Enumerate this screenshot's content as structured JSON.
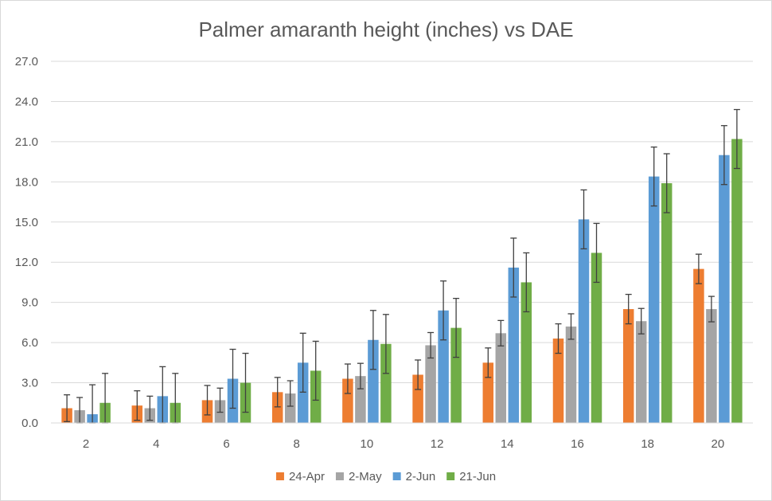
{
  "chart_data": {
    "type": "bar",
    "title": "Palmer amaranth height (inches) vs DAE",
    "xlabel": "",
    "ylabel": "",
    "categories": [
      "2",
      "4",
      "6",
      "8",
      "10",
      "12",
      "14",
      "16",
      "18",
      "20"
    ],
    "ylim": [
      0,
      27
    ],
    "yticks": [
      "0.0",
      "3.0",
      "6.0",
      "9.0",
      "12.0",
      "15.0",
      "18.0",
      "21.0",
      "24.0",
      "27.0"
    ],
    "grid": true,
    "legend_position": "bottom",
    "error_bars": true,
    "series": [
      {
        "name": "24-Apr",
        "color": "#ed7d31",
        "values": [
          1.1,
          1.3,
          1.7,
          2.3,
          3.3,
          3.6,
          4.5,
          6.3,
          8.5,
          11.5
        ],
        "errors": [
          1.0,
          1.1,
          1.1,
          1.1,
          1.1,
          1.1,
          1.1,
          1.1,
          1.1,
          1.1
        ]
      },
      {
        "name": "2-May",
        "color": "#a5a5a5",
        "values": [
          0.95,
          1.1,
          1.7,
          2.2,
          3.5,
          5.8,
          6.7,
          7.2,
          7.6,
          8.5
        ],
        "errors": [
          0.95,
          0.9,
          0.9,
          0.95,
          0.95,
          0.95,
          0.95,
          0.95,
          0.95,
          0.95
        ]
      },
      {
        "name": "2-Jun",
        "color": "#5b9bd5",
        "values": [
          0.65,
          2.0,
          3.3,
          4.5,
          6.2,
          8.4,
          11.6,
          15.2,
          18.4,
          20.0
        ],
        "errors": [
          2.2,
          2.2,
          2.2,
          2.2,
          2.2,
          2.2,
          2.2,
          2.2,
          2.2,
          2.2
        ]
      },
      {
        "name": "21-Jun",
        "color": "#70ad47",
        "values": [
          1.5,
          1.5,
          3.0,
          3.9,
          5.9,
          7.1,
          10.5,
          12.7,
          17.9,
          21.2
        ],
        "errors": [
          2.2,
          2.2,
          2.2,
          2.2,
          2.2,
          2.2,
          2.2,
          2.2,
          2.2,
          2.2
        ]
      }
    ]
  }
}
